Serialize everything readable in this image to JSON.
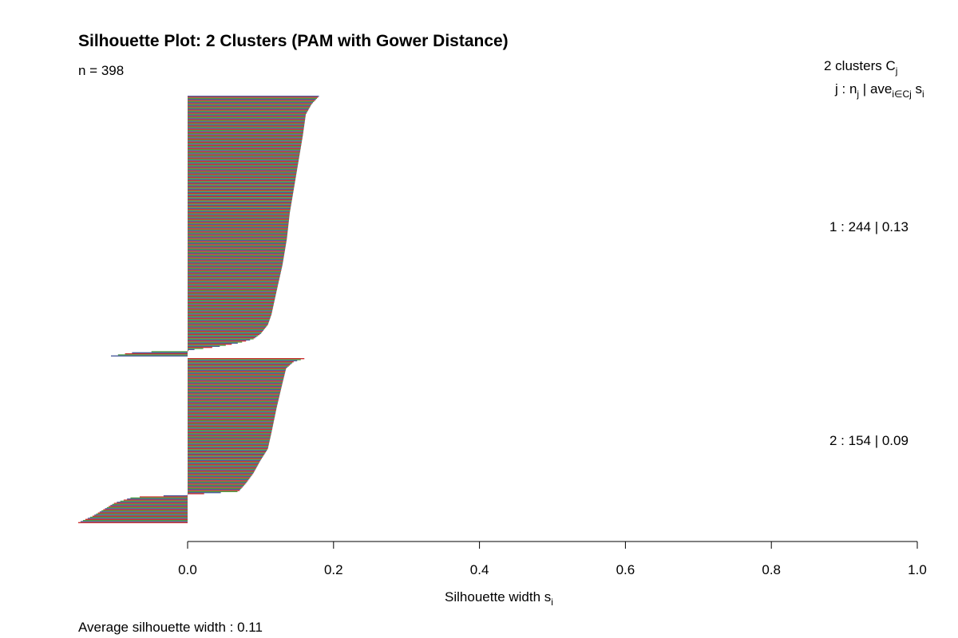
{
  "chart_data": {
    "type": "bar",
    "orientation": "horizontal",
    "title": "Silhouette Plot: 2 Clusters (PAM with Gower Distance)",
    "n_label": "n = 398",
    "n": 398,
    "xlabel": {
      "main": "Silhouette width s",
      "sub": "i"
    },
    "xlim": [
      -0.15,
      1.0
    ],
    "xticks": [
      0.0,
      0.2,
      0.4,
      0.6,
      0.8,
      1.0
    ],
    "xtick_labels": [
      "0.0",
      "0.2",
      "0.4",
      "0.6",
      "0.8",
      "1.0"
    ],
    "legend_header": {
      "line1_text": "2  clusters  C",
      "line1_sub": "j",
      "line2_pre": "j :  n",
      "line2_sub1": "j",
      "line2_mid": " | ave",
      "line2_sub2": "i∈Cj",
      "line2_post": "  s",
      "line2_sub3": "i"
    },
    "bar_colors": [
      "#4a5c9c",
      "#cc2f2f",
      "#4a9c3f"
    ],
    "clusters": [
      {
        "id": 1,
        "size": 244,
        "avg_width": 0.13,
        "label": "1 :   244  |  0.13",
        "profile": [
          [
            0,
            0.18
          ],
          [
            0.03,
            0.17
          ],
          [
            0.07,
            0.162
          ],
          [
            0.15,
            0.158
          ],
          [
            0.25,
            0.152
          ],
          [
            0.35,
            0.146
          ],
          [
            0.45,
            0.14
          ],
          [
            0.55,
            0.136
          ],
          [
            0.65,
            0.13
          ],
          [
            0.75,
            0.122
          ],
          [
            0.84,
            0.115
          ],
          [
            0.88,
            0.11
          ],
          [
            0.915,
            0.1
          ],
          [
            0.935,
            0.09
          ],
          [
            0.95,
            0.07
          ],
          [
            0.965,
            0.04
          ],
          [
            0.975,
            0.01
          ],
          [
            0.98,
            0.0
          ],
          [
            0.985,
            -0.07
          ],
          [
            1.0,
            -0.105
          ]
        ]
      },
      {
        "id": 2,
        "size": 154,
        "avg_width": 0.09,
        "label": "2 :   154  |  0.09",
        "profile": [
          [
            0,
            0.16
          ],
          [
            0.02,
            0.145
          ],
          [
            0.06,
            0.135
          ],
          [
            0.15,
            0.13
          ],
          [
            0.3,
            0.122
          ],
          [
            0.45,
            0.115
          ],
          [
            0.55,
            0.11
          ],
          [
            0.62,
            0.1
          ],
          [
            0.7,
            0.09
          ],
          [
            0.76,
            0.08
          ],
          [
            0.81,
            0.07
          ],
          [
            0.83,
            0.0
          ],
          [
            0.845,
            -0.075
          ],
          [
            0.88,
            -0.1
          ],
          [
            0.92,
            -0.115
          ],
          [
            0.96,
            -0.13
          ],
          [
            1.0,
            -0.15
          ]
        ]
      }
    ],
    "footer": "Average silhouette width :  0.11",
    "average_width": 0.11
  }
}
